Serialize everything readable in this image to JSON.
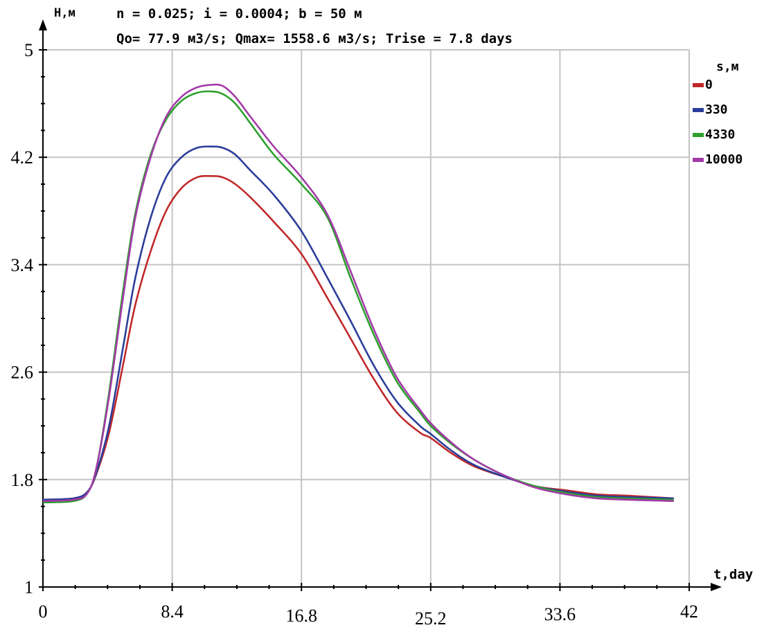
{
  "chart_data": {
    "type": "line",
    "title": "n = 0.025; i = 0.0004; b = 50 м",
    "subtitle": "Qo= 77.9 м3/s; Qmax= 1558.6 м3/s; Trise = 7.8 days",
    "ylabel": "H,м",
    "xlabel": "t,day",
    "legend_title": "s,м",
    "legend_placement": "right",
    "grid": true,
    "xlim": [
      0,
      42
    ],
    "ylim": [
      1,
      5
    ],
    "x_ticks": [
      0,
      8.4,
      16.8,
      25.2,
      33.6,
      42
    ],
    "x_tick_labels": [
      "0",
      "8.4",
      "16.8",
      "25.2",
      "33.6",
      "42"
    ],
    "y_ticks": [
      1,
      1.8,
      2.6,
      3.4,
      4.2,
      5
    ],
    "y_tick_labels": [
      "1",
      "1.8",
      "2.6",
      "3.4",
      "4.2",
      "5"
    ],
    "x": [
      0,
      2,
      2.9,
      3.5,
      4.3,
      5.2,
      6,
      7,
      8,
      9,
      10,
      11,
      11.7,
      12.5,
      13.5,
      15,
      16.8,
      18.5,
      20,
      21.5,
      23,
      24.5,
      25.2,
      26.5,
      28,
      30,
      32,
      34,
      36,
      38,
      41
    ],
    "series": [
      {
        "name": "0",
        "color": "#c0282a",
        "values": [
          1.65,
          1.66,
          1.71,
          1.85,
          2.15,
          2.65,
          3.1,
          3.5,
          3.8,
          3.97,
          4.05,
          4.06,
          4.05,
          4.0,
          3.9,
          3.72,
          3.48,
          3.15,
          2.85,
          2.55,
          2.3,
          2.15,
          2.11,
          2.0,
          1.9,
          1.82,
          1.75,
          1.72,
          1.69,
          1.68,
          1.66
        ]
      },
      {
        "name": "330",
        "color": "#2b3d9a",
        "values": [
          1.65,
          1.66,
          1.71,
          1.86,
          2.2,
          2.78,
          3.3,
          3.75,
          4.05,
          4.2,
          4.27,
          4.28,
          4.27,
          4.22,
          4.1,
          3.92,
          3.65,
          3.3,
          2.98,
          2.65,
          2.38,
          2.2,
          2.14,
          2.02,
          1.91,
          1.82,
          1.75,
          1.71,
          1.68,
          1.67,
          1.66
        ]
      },
      {
        "name": "4330",
        "color": "#2ca02c",
        "values": [
          1.63,
          1.64,
          1.7,
          1.9,
          2.45,
          3.2,
          3.78,
          4.22,
          4.48,
          4.62,
          4.68,
          4.69,
          4.67,
          4.6,
          4.45,
          4.22,
          4.0,
          3.75,
          3.3,
          2.88,
          2.53,
          2.3,
          2.2,
          2.07,
          1.95,
          1.83,
          1.75,
          1.7,
          1.67,
          1.66,
          1.65
        ]
      },
      {
        "name": "10000",
        "color": "#a33aa8",
        "values": [
          1.64,
          1.65,
          1.7,
          1.9,
          2.42,
          3.15,
          3.75,
          4.2,
          4.5,
          4.65,
          4.72,
          4.74,
          4.73,
          4.65,
          4.5,
          4.28,
          4.05,
          3.77,
          3.35,
          2.92,
          2.56,
          2.32,
          2.22,
          2.08,
          1.95,
          1.83,
          1.74,
          1.69,
          1.66,
          1.65,
          1.64
        ]
      }
    ]
  }
}
